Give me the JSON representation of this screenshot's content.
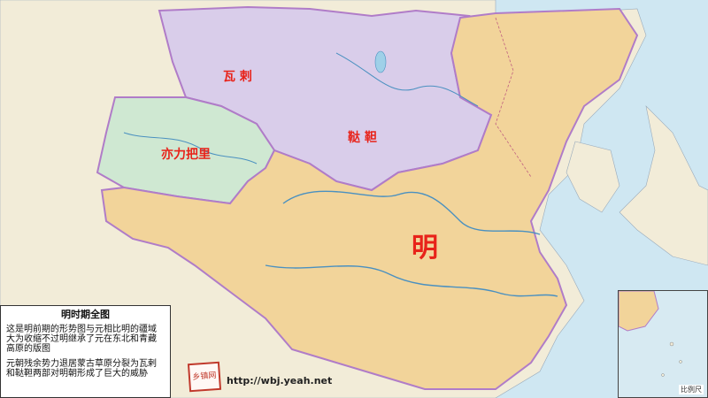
{
  "map": {
    "regions": [
      {
        "id": "ming",
        "label": "明",
        "color": "#f2d49a"
      },
      {
        "id": "oirat",
        "label": "瓦 剌",
        "color": "#d9cdea"
      },
      {
        "id": "tatar",
        "label": "鞑 靼",
        "color": "#d9cdea"
      },
      {
        "id": "yili",
        "label": "亦力把里",
        "color": "#cfe8d2"
      }
    ],
    "colors": {
      "sea": "#cfe7f2",
      "land": "#f2ecd8",
      "border": "#b07cc8",
      "label": "#e8231a"
    }
  },
  "legend": {
    "title": "明时期全图",
    "para1": "这是明前期的形势图与元相比明的疆域大为收缩不过明继承了元在东北和青藏高原的版图",
    "para2": "元朝残余势力退居蒙古草原分裂为瓦剌和鞑靼两部对明朝形成了巨大的威胁"
  },
  "watermark": {
    "seal_text": "乡镇网",
    "url": "http://wbj.yeah.net"
  },
  "inset": {
    "label": "比例尺"
  }
}
